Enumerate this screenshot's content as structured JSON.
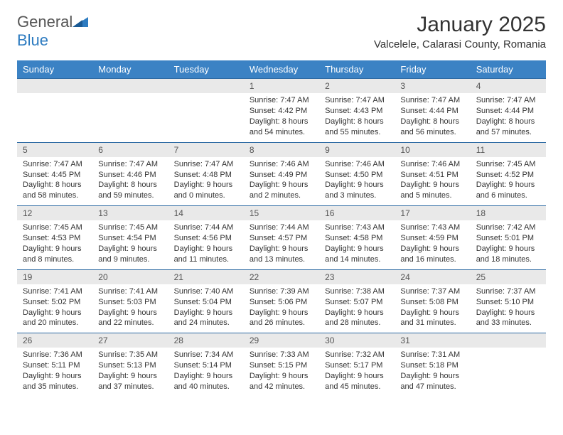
{
  "brand": {
    "part1": "General",
    "part2": "Blue"
  },
  "title": "January 2025",
  "location": "Valcelele, Calarasi County, Romania",
  "colors": {
    "header_bg": "#3b82c4",
    "header_text": "#ffffff",
    "daynum_bg": "#e9e9e9",
    "row_divider": "#2d6aa3",
    "text": "#333333",
    "logo_gray": "#555555",
    "logo_blue": "#2d7bc0",
    "page_bg": "#ffffff"
  },
  "day_headers": [
    "Sunday",
    "Monday",
    "Tuesday",
    "Wednesday",
    "Thursday",
    "Friday",
    "Saturday"
  ],
  "weeks": [
    [
      null,
      null,
      null,
      {
        "d": "1",
        "sr": "7:47 AM",
        "ss": "4:42 PM",
        "dl": "8 hours and 54 minutes."
      },
      {
        "d": "2",
        "sr": "7:47 AM",
        "ss": "4:43 PM",
        "dl": "8 hours and 55 minutes."
      },
      {
        "d": "3",
        "sr": "7:47 AM",
        "ss": "4:44 PM",
        "dl": "8 hours and 56 minutes."
      },
      {
        "d": "4",
        "sr": "7:47 AM",
        "ss": "4:44 PM",
        "dl": "8 hours and 57 minutes."
      }
    ],
    [
      {
        "d": "5",
        "sr": "7:47 AM",
        "ss": "4:45 PM",
        "dl": "8 hours and 58 minutes."
      },
      {
        "d": "6",
        "sr": "7:47 AM",
        "ss": "4:46 PM",
        "dl": "8 hours and 59 minutes."
      },
      {
        "d": "7",
        "sr": "7:47 AM",
        "ss": "4:48 PM",
        "dl": "9 hours and 0 minutes."
      },
      {
        "d": "8",
        "sr": "7:46 AM",
        "ss": "4:49 PM",
        "dl": "9 hours and 2 minutes."
      },
      {
        "d": "9",
        "sr": "7:46 AM",
        "ss": "4:50 PM",
        "dl": "9 hours and 3 minutes."
      },
      {
        "d": "10",
        "sr": "7:46 AM",
        "ss": "4:51 PM",
        "dl": "9 hours and 5 minutes."
      },
      {
        "d": "11",
        "sr": "7:45 AM",
        "ss": "4:52 PM",
        "dl": "9 hours and 6 minutes."
      }
    ],
    [
      {
        "d": "12",
        "sr": "7:45 AM",
        "ss": "4:53 PM",
        "dl": "9 hours and 8 minutes."
      },
      {
        "d": "13",
        "sr": "7:45 AM",
        "ss": "4:54 PM",
        "dl": "9 hours and 9 minutes."
      },
      {
        "d": "14",
        "sr": "7:44 AM",
        "ss": "4:56 PM",
        "dl": "9 hours and 11 minutes."
      },
      {
        "d": "15",
        "sr": "7:44 AM",
        "ss": "4:57 PM",
        "dl": "9 hours and 13 minutes."
      },
      {
        "d": "16",
        "sr": "7:43 AM",
        "ss": "4:58 PM",
        "dl": "9 hours and 14 minutes."
      },
      {
        "d": "17",
        "sr": "7:43 AM",
        "ss": "4:59 PM",
        "dl": "9 hours and 16 minutes."
      },
      {
        "d": "18",
        "sr": "7:42 AM",
        "ss": "5:01 PM",
        "dl": "9 hours and 18 minutes."
      }
    ],
    [
      {
        "d": "19",
        "sr": "7:41 AM",
        "ss": "5:02 PM",
        "dl": "9 hours and 20 minutes."
      },
      {
        "d": "20",
        "sr": "7:41 AM",
        "ss": "5:03 PM",
        "dl": "9 hours and 22 minutes."
      },
      {
        "d": "21",
        "sr": "7:40 AM",
        "ss": "5:04 PM",
        "dl": "9 hours and 24 minutes."
      },
      {
        "d": "22",
        "sr": "7:39 AM",
        "ss": "5:06 PM",
        "dl": "9 hours and 26 minutes."
      },
      {
        "d": "23",
        "sr": "7:38 AM",
        "ss": "5:07 PM",
        "dl": "9 hours and 28 minutes."
      },
      {
        "d": "24",
        "sr": "7:37 AM",
        "ss": "5:08 PM",
        "dl": "9 hours and 31 minutes."
      },
      {
        "d": "25",
        "sr": "7:37 AM",
        "ss": "5:10 PM",
        "dl": "9 hours and 33 minutes."
      }
    ],
    [
      {
        "d": "26",
        "sr": "7:36 AM",
        "ss": "5:11 PM",
        "dl": "9 hours and 35 minutes."
      },
      {
        "d": "27",
        "sr": "7:35 AM",
        "ss": "5:13 PM",
        "dl": "9 hours and 37 minutes."
      },
      {
        "d": "28",
        "sr": "7:34 AM",
        "ss": "5:14 PM",
        "dl": "9 hours and 40 minutes."
      },
      {
        "d": "29",
        "sr": "7:33 AM",
        "ss": "5:15 PM",
        "dl": "9 hours and 42 minutes."
      },
      {
        "d": "30",
        "sr": "7:32 AM",
        "ss": "5:17 PM",
        "dl": "9 hours and 45 minutes."
      },
      {
        "d": "31",
        "sr": "7:31 AM",
        "ss": "5:18 PM",
        "dl": "9 hours and 47 minutes."
      },
      null
    ]
  ],
  "labels": {
    "sunrise": "Sunrise:",
    "sunset": "Sunset:",
    "daylight": "Daylight:"
  }
}
